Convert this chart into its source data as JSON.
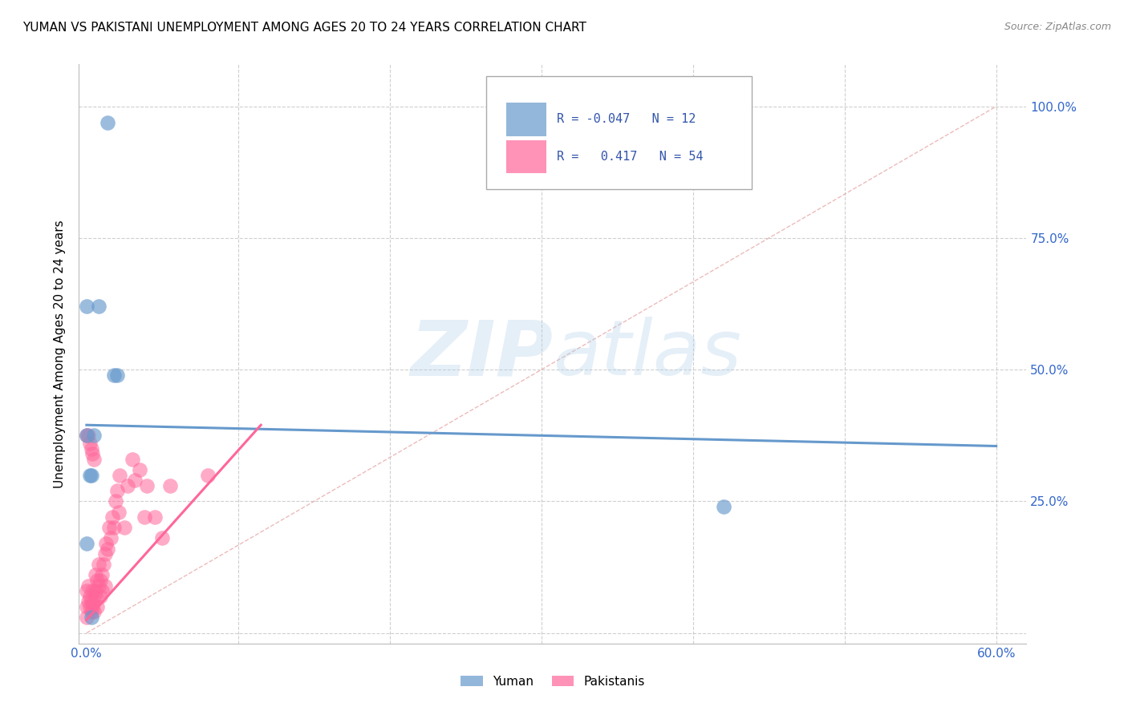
{
  "title": "YUMAN VS PAKISTANI UNEMPLOYMENT AMONG AGES 20 TO 24 YEARS CORRELATION CHART",
  "source": "Source: ZipAtlas.com",
  "ylabel": "Unemployment Among Ages 20 to 24 years",
  "xlim": [
    -0.005,
    0.62
  ],
  "ylim": [
    -0.02,
    1.08
  ],
  "yuman_color": "#6699CC",
  "pakistani_color": "#FF6699",
  "yuman_R": -0.047,
  "yuman_N": 12,
  "pakistani_R": 0.417,
  "pakistani_N": 54,
  "legend_label_yuman": "Yuman",
  "legend_label_pakistani": "Pakistanis",
  "background_color": "#FFFFFF",
  "yuman_scatter_x": [
    0.008,
    0.0,
    0.018,
    0.02,
    0.0,
    0.002,
    0.003,
    0.005,
    0.0,
    0.42,
    0.014,
    0.003
  ],
  "yuman_scatter_y": [
    0.62,
    0.62,
    0.49,
    0.49,
    0.375,
    0.3,
    0.3,
    0.375,
    0.17,
    0.24,
    0.97,
    0.03
  ],
  "pakistani_scatter_x": [
    0.0,
    0.0,
    0.0,
    0.001,
    0.001,
    0.002,
    0.002,
    0.003,
    0.003,
    0.004,
    0.004,
    0.005,
    0.005,
    0.006,
    0.006,
    0.006,
    0.007,
    0.007,
    0.008,
    0.008,
    0.009,
    0.009,
    0.01,
    0.01,
    0.011,
    0.012,
    0.012,
    0.013,
    0.014,
    0.015,
    0.016,
    0.017,
    0.018,
    0.019,
    0.02,
    0.021,
    0.022,
    0.025,
    0.027,
    0.03,
    0.032,
    0.035,
    0.038,
    0.04,
    0.045,
    0.05,
    0.055,
    0.08,
    0.0,
    0.001,
    0.002,
    0.003,
    0.004,
    0.005
  ],
  "pakistani_scatter_y": [
    0.05,
    0.08,
    0.03,
    0.06,
    0.09,
    0.05,
    0.07,
    0.06,
    0.04,
    0.05,
    0.08,
    0.06,
    0.04,
    0.08,
    0.11,
    0.07,
    0.1,
    0.05,
    0.13,
    0.09,
    0.1,
    0.07,
    0.11,
    0.08,
    0.13,
    0.15,
    0.09,
    0.17,
    0.16,
    0.2,
    0.18,
    0.22,
    0.2,
    0.25,
    0.27,
    0.23,
    0.3,
    0.2,
    0.28,
    0.33,
    0.29,
    0.31,
    0.22,
    0.28,
    0.22,
    0.18,
    0.28,
    0.3,
    0.375,
    0.375,
    0.36,
    0.35,
    0.34,
    0.33
  ],
  "yuman_line_x": [
    0.0,
    0.6
  ],
  "yuman_line_y": [
    0.395,
    0.355
  ],
  "pakistani_line_x": [
    0.0,
    0.115
  ],
  "pakistani_line_y": [
    0.025,
    0.395
  ],
  "diag_line_x": [
    0.0,
    0.6
  ],
  "diag_line_y": [
    0.0,
    1.0
  ],
  "grid_color": "#BBBBBB",
  "tick_color": "#3366CC"
}
